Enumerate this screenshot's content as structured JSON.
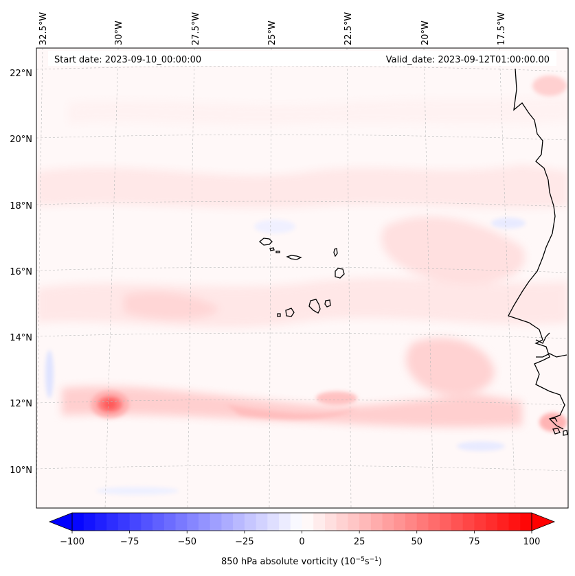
{
  "map": {
    "start_label": "Start date: 2023-09-10_00:00:00",
    "valid_label": "Valid_date: 2023-09-12T01:00:00.00",
    "lon_ticks": [
      "32.5°W",
      "30°W",
      "27.5°W",
      "25°W",
      "22.5°W",
      "20°W",
      "17.5°W"
    ],
    "lat_ticks": [
      "22°N",
      "20°N",
      "18°N",
      "16°N",
      "14°N",
      "12°N",
      "10°N"
    ],
    "extent": {
      "lon_min": -32.5,
      "lon_max": -16.0,
      "lat_min": 8.8,
      "lat_max": 22.8
    },
    "features": [
      {
        "name": "vorticity-max",
        "lon": -30.0,
        "lat": 12.0,
        "value": 55
      },
      {
        "name": "vorticity-band",
        "lon": -23.0,
        "lat": 11.8,
        "value": 22
      }
    ]
  },
  "colorbar": {
    "label_prefix": "850 hPa absolute vorticity (10",
    "label_exp1": "−5",
    "label_mid": "s",
    "label_exp2": "−1",
    "label_suffix": ")",
    "ticks": [
      "−100",
      "−75",
      "−50",
      "−25",
      "0",
      "25",
      "50",
      "75",
      "100"
    ],
    "min": -100,
    "max": 100,
    "step": 5,
    "cmap": {
      "neg": "#0000ff",
      "zero": "#ffffff",
      "pos": "#ff0000"
    }
  }
}
